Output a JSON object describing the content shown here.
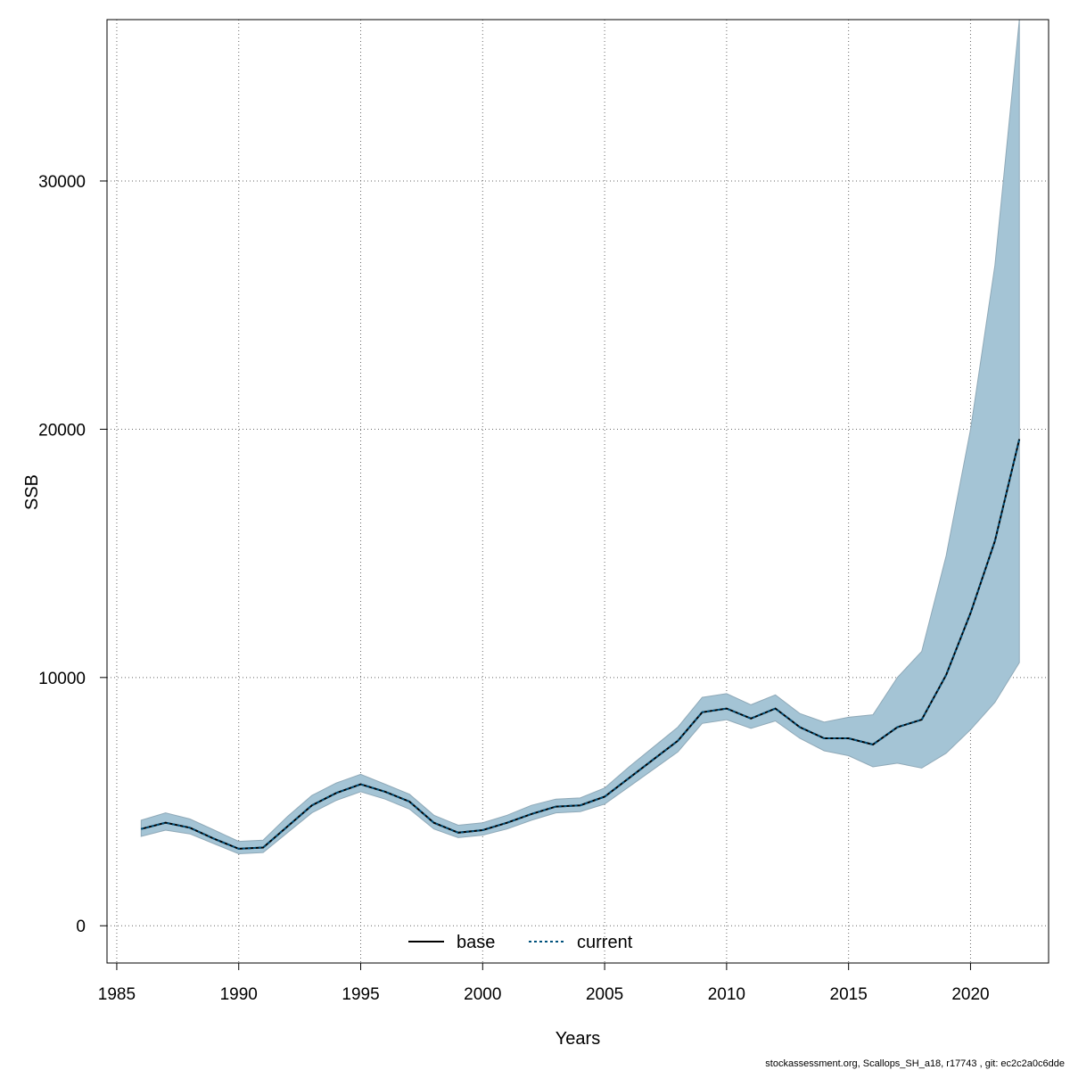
{
  "chart_data": {
    "type": "line",
    "title": "",
    "xlabel": "Years",
    "ylabel": "SSB",
    "xlim": [
      1984.6,
      2023.2
    ],
    "ylim": [
      -1500,
      36500
    ],
    "x_ticks": [
      1985,
      1990,
      1995,
      2000,
      2005,
      2010,
      2015,
      2020
    ],
    "y_ticks": [
      0,
      10000,
      20000,
      30000
    ],
    "grid": true,
    "legend_position": "bottom-center",
    "x": [
      1986,
      1987,
      1988,
      1989,
      1990,
      1991,
      1992,
      1993,
      1994,
      1995,
      1996,
      1997,
      1998,
      1999,
      2000,
      2001,
      2002,
      2003,
      2004,
      2005,
      2006,
      2007,
      2008,
      2009,
      2010,
      2011,
      2012,
      2013,
      2014,
      2015,
      2016,
      2017,
      2018,
      2019,
      2020,
      2021,
      2022
    ],
    "series": [
      {
        "name": "base",
        "color": "#000000",
        "line_style": "solid",
        "values": [
          3900,
          4150,
          3950,
          3500,
          3100,
          3150,
          4000,
          4850,
          5350,
          5700,
          5400,
          5000,
          4150,
          3750,
          3850,
          4150,
          4500,
          4800,
          4850,
          5200,
          5950,
          6700,
          7450,
          8600,
          8750,
          8350,
          8750,
          8000,
          7550,
          7550,
          7300,
          8000,
          8300,
          10100,
          12600,
          15500,
          19600
        ]
      },
      {
        "name": "current",
        "color": "#00517c",
        "line_style": "dotted",
        "values": [
          3900,
          4150,
          3950,
          3500,
          3100,
          3150,
          4000,
          4850,
          5350,
          5700,
          5400,
          5000,
          4150,
          3750,
          3850,
          4150,
          4500,
          4800,
          4850,
          5200,
          5950,
          6700,
          7450,
          8600,
          8750,
          8350,
          8750,
          8000,
          7550,
          7550,
          7300,
          8000,
          8300,
          10100,
          12600,
          15500,
          19600
        ]
      }
    ],
    "confidence_band": {
      "color": "#a4c4d5",
      "lower": [
        3600,
        3850,
        3700,
        3300,
        2900,
        2950,
        3750,
        4550,
        5050,
        5400,
        5100,
        4700,
        3900,
        3550,
        3650,
        3900,
        4250,
        4550,
        4600,
        4900,
        5600,
        6300,
        7000,
        8150,
        8300,
        7950,
        8250,
        7550,
        7050,
        6850,
        6400,
        6550,
        6350,
        6950,
        7900,
        9000,
        10600
      ],
      "upper": [
        4250,
        4550,
        4300,
        3850,
        3400,
        3450,
        4400,
        5250,
        5750,
        6100,
        5700,
        5300,
        4450,
        4050,
        4150,
        4450,
        4850,
        5100,
        5150,
        5550,
        6400,
        7200,
        8000,
        9200,
        9350,
        8900,
        9300,
        8550,
        8200,
        8400,
        8500,
        10000,
        11050,
        14900,
        20000,
        26600,
        36500
      ]
    }
  },
  "legend": {
    "base_label": "base",
    "current_label": "current"
  },
  "footer_text": "stockassessment.org, Scallops_SH_a18, r17743 , git: ec2c2a0c6dde"
}
